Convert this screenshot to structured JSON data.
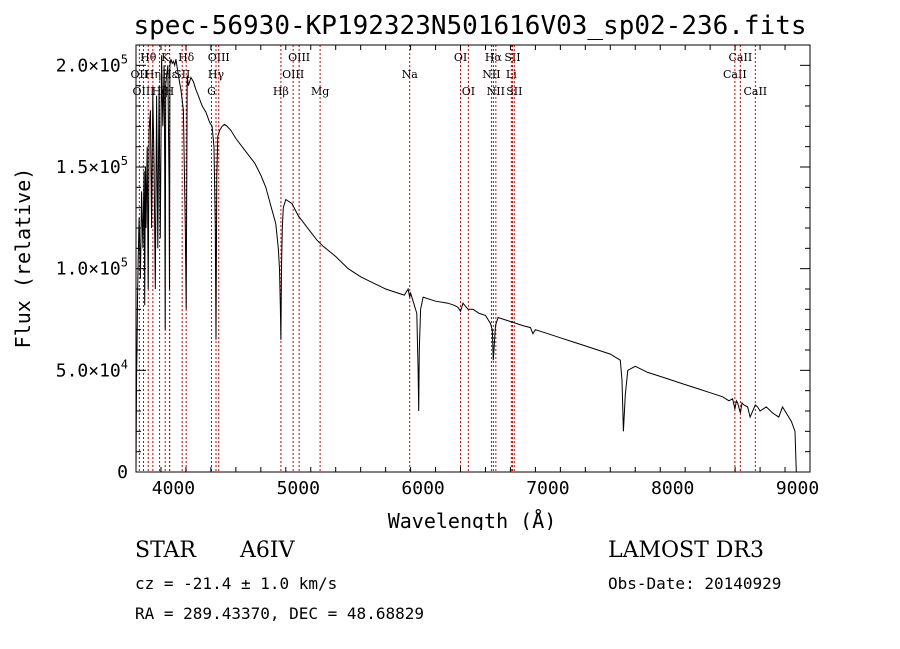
{
  "chart_data": {
    "type": "line",
    "title": "spec-56930-KP192323N501616V03_sp02-236.fits",
    "xlabel": "Wavelength (Å)",
    "ylabel": "Flux (relative)",
    "xlim": [
      3700,
      9100
    ],
    "ylim": [
      0,
      210000
    ],
    "xticks": [
      4000,
      5000,
      6000,
      7000,
      8000,
      9000
    ],
    "xtick_labels": [
      "4000",
      "5000",
      "6000",
      "7000",
      "8000",
      "9000"
    ],
    "yticks": [
      0,
      50000,
      100000,
      150000,
      200000
    ],
    "ytick_labels": [
      {
        "mantissa": "0",
        "exp": ""
      },
      {
        "mantissa": "5.0×10",
        "exp": "4"
      },
      {
        "mantissa": "1.0×10",
        "exp": "5"
      },
      {
        "mantissa": "1.5×10",
        "exp": "5"
      },
      {
        "mantissa": "2.0×10",
        "exp": "5"
      }
    ],
    "series": [
      {
        "name": "flux",
        "x": [
          3700,
          3705,
          3708,
          3712,
          3718,
          3725,
          3735,
          3745,
          3755,
          3765,
          3770,
          3775,
          3780,
          3790,
          3798,
          3805,
          3815,
          3825,
          3835,
          3845,
          3855,
          3865,
          3875,
          3885,
          3890,
          3895,
          3905,
          3915,
          3925,
          3930,
          3934,
          3938,
          3945,
          3955,
          3965,
          3968,
          3972,
          3980,
          3990,
          4000,
          4010,
          4020,
          4040,
          4060,
          4080,
          4095,
          4102,
          4110,
          4120,
          4140,
          4160,
          4180,
          4200,
          4230,
          4260,
          4290,
          4310,
          4325,
          4335,
          4341,
          4347,
          4355,
          4370,
          4390,
          4410,
          4430,
          4460,
          4500,
          4550,
          4600,
          4650,
          4700,
          4740,
          4780,
          4820,
          4840,
          4850,
          4857,
          4861,
          4866,
          4872,
          4880,
          4900,
          4950,
          5000,
          5050,
          5100,
          5150,
          5200,
          5300,
          5400,
          5500,
          5600,
          5700,
          5800,
          5850,
          5880,
          5893,
          5900,
          5920,
          5950,
          5960,
          5965,
          5970,
          5980,
          6000,
          6100,
          6200,
          6250,
          6280,
          6300,
          6320,
          6360,
          6400,
          6450,
          6500,
          6540,
          6555,
          6563,
          6570,
          6580,
          6600,
          6650,
          6700,
          6800,
          6860,
          6880,
          6900,
          6950,
          7000,
          7100,
          7200,
          7300,
          7400,
          7500,
          7580,
          7594,
          7605,
          7620,
          7640,
          7700,
          7800,
          7900,
          8000,
          8100,
          8200,
          8300,
          8400,
          8450,
          8480,
          8498,
          8510,
          8520,
          8542,
          8555,
          8570,
          8600,
          8620,
          8662,
          8680,
          8700,
          8750,
          8800,
          8850,
          8880,
          8900,
          8950,
          8980,
          8990
        ],
        "y": [
          0,
          48000,
          60000,
          85000,
          105000,
          125000,
          95000,
          138000,
          110000,
          148000,
          82000,
          150000,
          120000,
          160000,
          90000,
          168000,
          178000,
          120000,
          186000,
          150000,
          90000,
          185000,
          110000,
          190000,
          150000,
          115000,
          205000,
          170000,
          200000,
          150000,
          70000,
          190000,
          195000,
          200000,
          140000,
          90000,
          200000,
          203000,
          201000,
          202000,
          200000,
          203000,
          195000,
          188000,
          178000,
          120000,
          80000,
          195000,
          190000,
          194000,
          192000,
          188000,
          185000,
          180000,
          177000,
          172000,
          170000,
          160000,
          120000,
          65000,
          145000,
          165000,
          168000,
          170000,
          171000,
          170000,
          168000,
          164000,
          160000,
          156000,
          152000,
          146000,
          140000,
          131000,
          122000,
          110000,
          100000,
          80000,
          65000,
          100000,
          120000,
          130000,
          134000,
          132000,
          126000,
          122000,
          118000,
          114000,
          111000,
          106000,
          100000,
          96000,
          93000,
          90000,
          88000,
          87000,
          90000,
          86000,
          88000,
          84000,
          78000,
          50000,
          30000,
          60000,
          80000,
          86000,
          84000,
          83000,
          82000,
          81000,
          79000,
          83000,
          80000,
          80000,
          78000,
          77000,
          73000,
          70000,
          55000,
          62000,
          72000,
          76000,
          75000,
          74000,
          72000,
          71000,
          68000,
          70000,
          69000,
          68000,
          66000,
          64000,
          62000,
          60000,
          58000,
          55000,
          45000,
          20000,
          38000,
          50000,
          52000,
          49000,
          47000,
          45000,
          43000,
          41000,
          39000,
          37000,
          35000,
          36000,
          31000,
          35000,
          34000,
          29000,
          34000,
          33000,
          32000,
          27000,
          33000,
          32000,
          30000,
          32000,
          29000,
          27000,
          32000,
          30000,
          25000,
          20000,
          0
        ]
      }
    ],
    "lines": [
      {
        "label": "Hθ",
        "wave": 3798,
        "row": 1
      },
      {
        "label": "OII",
        "wave": 3727,
        "row": 2
      },
      {
        "label": "OIII",
        "wave": 3760,
        "row": 3
      },
      {
        "label": "Hη",
        "wave": 3835,
        "row": 2
      },
      {
        "label": "Hζ",
        "wave": 3889,
        "row": 3
      },
      {
        "label": "K",
        "wave": 3934,
        "row": 1
      },
      {
        "label": "H",
        "wave": 3968,
        "row": 3
      },
      {
        "label": "Hε",
        "wave": 3970,
        "row": 2
      },
      {
        "label": "SII",
        "wave": 4070,
        "row": 2
      },
      {
        "label": "Hδ",
        "wave": 4102,
        "row": 1
      },
      {
        "label": "G",
        "wave": 4305,
        "row": 3
      },
      {
        "label": "OIII",
        "wave": 4363,
        "row": 1
      },
      {
        "label": "Hγ",
        "wave": 4341,
        "row": 2
      },
      {
        "label": "Hβ",
        "wave": 4861,
        "row": 3
      },
      {
        "label": "OIII",
        "wave": 4959,
        "row": 2
      },
      {
        "label": "OIII",
        "wave": 5007,
        "row": 1
      },
      {
        "label": "Mg",
        "wave": 5175,
        "row": 3
      },
      {
        "label": "Na",
        "wave": 5893,
        "row": 2
      },
      {
        "label": "OI",
        "wave": 6300,
        "row": 1
      },
      {
        "label": "OI",
        "wave": 6363,
        "row": 3
      },
      {
        "label": "NII",
        "wave": 6548,
        "row": 2
      },
      {
        "label": "Hα",
        "wave": 6563,
        "row": 1
      },
      {
        "label": "NII",
        "wave": 6583,
        "row": 3
      },
      {
        "label": "Li",
        "wave": 6707,
        "row": 2
      },
      {
        "label": "SII",
        "wave": 6716,
        "row": 1
      },
      {
        "label": "SII",
        "wave": 6731,
        "row": 3
      },
      {
        "label": "CaII",
        "wave": 8498,
        "row": 2
      },
      {
        "label": "CaII",
        "wave": 8542,
        "row": 1
      },
      {
        "label": "CaII",
        "wave": 8662,
        "row": 3
      }
    ]
  },
  "info": {
    "object_class": "STAR",
    "subclass": "A6IV",
    "survey": "LAMOST DR3",
    "cz": "cz = -21.4 ± 1.0 km/s",
    "obs_date": "Obs-Date: 20140929",
    "coords": "RA = 289.43370, DEC =  48.68829"
  },
  "colors": {
    "spectrum": "#000000",
    "line_marker": "#cc0000",
    "background": "#ffffff"
  }
}
